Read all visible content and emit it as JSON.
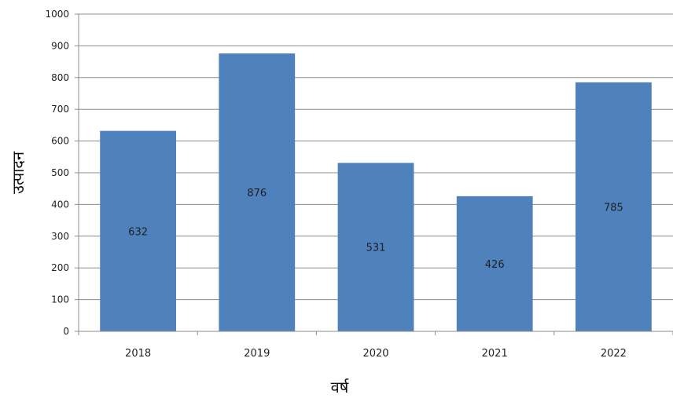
{
  "chart_data": {
    "type": "bar",
    "categories": [
      "2018",
      "2019",
      "2020",
      "2021",
      "2022"
    ],
    "values": [
      632,
      876,
      531,
      426,
      785
    ],
    "xlabel": "वर्ष",
    "ylabel": "उत्पादन",
    "ylim": [
      0,
      1000
    ],
    "yticks": [
      0,
      100,
      200,
      300,
      400,
      500,
      600,
      700,
      800,
      900,
      1000
    ],
    "grid": true,
    "legend": "none",
    "bar_color": "#4f81bd"
  }
}
